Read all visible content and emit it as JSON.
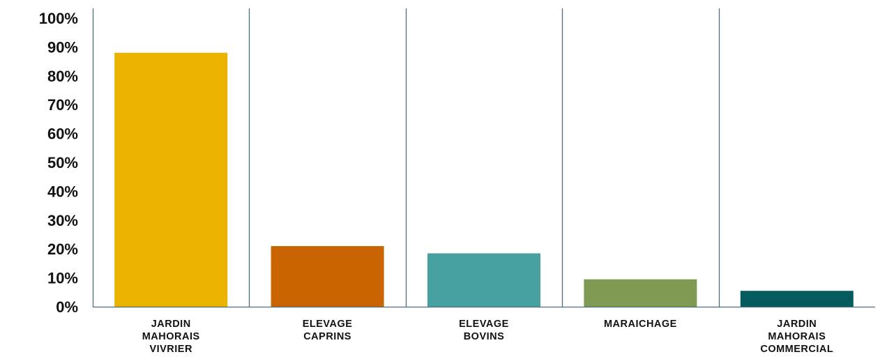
{
  "chart_data": {
    "type": "bar",
    "title": "",
    "xlabel": "",
    "ylabel": "",
    "ylim": [
      0,
      100
    ],
    "y_ticks": [
      "0%",
      "10%",
      "20%",
      "30%",
      "40%",
      "50%",
      "60%",
      "70%",
      "80%",
      "90%",
      "100%"
    ],
    "categories": [
      [
        "JARDIN",
        "MAHORAIS",
        "VIVRIER"
      ],
      [
        "ELEVAGE",
        "CAPRINS"
      ],
      [
        "ELEVAGE",
        "BOVINS"
      ],
      [
        "MARAICHAGE"
      ],
      [
        "JARDIN",
        "MAHORAIS",
        "COMMERCIAL"
      ]
    ],
    "values": [
      88,
      21,
      18.5,
      9.5,
      5.5
    ],
    "colors": [
      "#e9b300",
      "#c96400",
      "#48a1a1",
      "#7e9a53",
      "#035b5e"
    ],
    "axis_color": "#4d6e80",
    "grid": false,
    "legend": "none"
  }
}
